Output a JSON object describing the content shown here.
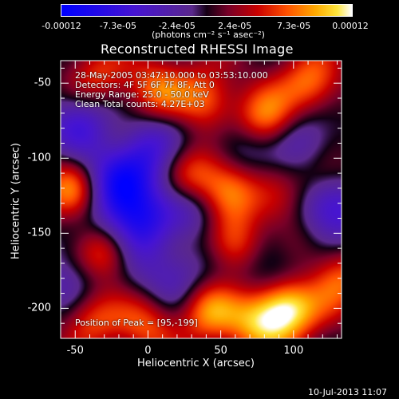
{
  "colorbar": {
    "ticks": [
      "-0.00012",
      "-7.3e-05",
      "-2.4e-05",
      "2.4e-05",
      "7.3e-05",
      "0.00012"
    ],
    "tick_values": [
      -0.00012,
      -7.3e-05,
      -2.4e-05,
      2.4e-05,
      7.3e-05,
      0.00012
    ],
    "range": [
      -0.00012,
      0.00012
    ],
    "unit_label": "(photons cm⁻² s⁻¹ asec⁻²)"
  },
  "chart_data": {
    "type": "heatmap",
    "title": "Reconstructed RHESSI Image",
    "xlabel": "Heliocentric X (arcsec)",
    "ylabel": "Heliocentric Y (arcsec)",
    "xlim": [
      -60,
      133
    ],
    "ylim": [
      -220,
      -35
    ],
    "x_ticks": [
      "-50",
      "0",
      "50",
      "100"
    ],
    "x_tick_values": [
      -50,
      0,
      50,
      100
    ],
    "y_ticks": [
      "-50",
      "-100",
      "-150",
      "-200"
    ],
    "y_tick_values": [
      -50,
      -100,
      -150,
      -200
    ],
    "annotations": [
      "28-May-2005 03:47:10.000 to 03:53:10.000",
      "Detectors: 4F 5F 6F 7F 8F, Att 0",
      "Energy Range: 25.0 - 50.0 keV",
      "Clean      Total counts: 4.27E+03"
    ],
    "peak_label": "Position of Peak = [95,-199]",
    "peak": [
      95,
      -199
    ],
    "blobs": [
      {
        "x": 95,
        "y": -199,
        "v": 1.0
      },
      {
        "x": 80,
        "y": -75,
        "v": 0.85
      },
      {
        "x": 112,
        "y": -50,
        "v": 0.6
      },
      {
        "x": 5,
        "y": -55,
        "v": 0.55
      },
      {
        "x": -35,
        "y": -48,
        "v": 0.5
      },
      {
        "x": 40,
        "y": -60,
        "v": 0.55
      },
      {
        "x": 55,
        "y": -120,
        "v": 0.8
      },
      {
        "x": 30,
        "y": -110,
        "v": 0.55
      },
      {
        "x": -50,
        "y": -122,
        "v": 0.85
      },
      {
        "x": -30,
        "y": -163,
        "v": 0.8
      },
      {
        "x": 20,
        "y": -150,
        "v": 0.45
      },
      {
        "x": 60,
        "y": -160,
        "v": 0.55
      },
      {
        "x": 100,
        "y": -160,
        "v": 0.5
      },
      {
        "x": 120,
        "y": -110,
        "v": 0.55
      },
      {
        "x": 130,
        "y": -180,
        "v": 0.6
      },
      {
        "x": 40,
        "y": -200,
        "v": 0.7
      },
      {
        "x": 0,
        "y": -210,
        "v": 0.5
      },
      {
        "x": -40,
        "y": -205,
        "v": 0.55
      },
      {
        "x": 75,
        "y": -210,
        "v": 0.6
      },
      {
        "x": -20,
        "y": -90,
        "v": 0.35
      },
      {
        "x": 90,
        "y": -135,
        "v": 0.35
      },
      {
        "x": -5,
        "y": -95,
        "v": -0.75
      },
      {
        "x": -30,
        "y": -118,
        "v": -0.7
      },
      {
        "x": -10,
        "y": -145,
        "v": -0.9
      },
      {
        "x": 30,
        "y": -135,
        "v": -0.6
      },
      {
        "x": 90,
        "y": -170,
        "v": -0.7
      },
      {
        "x": 125,
        "y": -135,
        "v": -0.75
      },
      {
        "x": 65,
        "y": -90,
        "v": -0.5
      },
      {
        "x": -45,
        "y": -75,
        "v": -0.55
      },
      {
        "x": 20,
        "y": -180,
        "v": -0.55
      },
      {
        "x": 110,
        "y": -90,
        "v": -0.5
      },
      {
        "x": -50,
        "y": -180,
        "v": -0.5
      }
    ]
  },
  "footer": {
    "timestamp": "10-Jul-2013 11:07"
  }
}
